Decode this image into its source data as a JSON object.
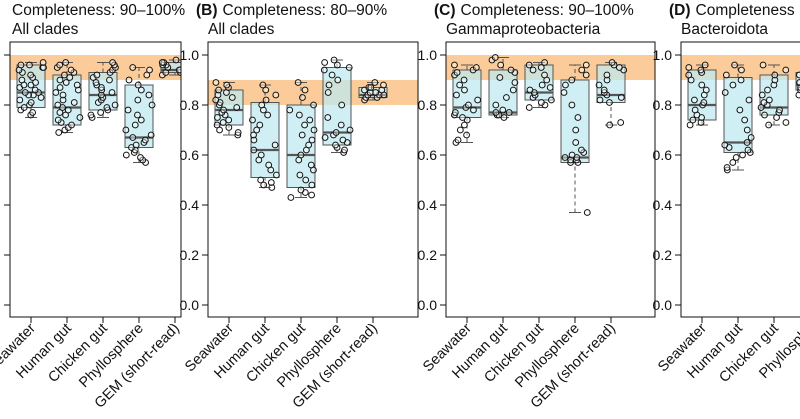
{
  "colors": {
    "box_fill": "#bfeaf0",
    "band": "#f9b977",
    "box_edge": "#555555",
    "median": "#555555",
    "point_edge": "#111111",
    "frame": "#111111"
  },
  "shared": {
    "y_ticks": [
      "0.0",
      "0.2",
      "0.4",
      "0.6",
      "0.8",
      "1.0"
    ],
    "band_range": [
      0.9,
      1.0
    ],
    "yscale": [
      0,
      1
    ]
  },
  "chart_data": [
    {
      "type": "box",
      "tag": "",
      "title": "Completeness: 90–100%",
      "subtitle": "All clades",
      "categories": [
        "Seawater",
        "Human gut",
        "Chicken gut",
        "Phyllosphere",
        "GEM (short-read)"
      ],
      "band": [
        0.9,
        1.0
      ],
      "boxes": [
        {
          "q1": 0.79,
          "median": 0.85,
          "q3": 0.96,
          "whisker_low": 0.75,
          "whisker_high": 0.97,
          "points": [
            0.76,
            0.77,
            0.78,
            0.79,
            0.8,
            0.81,
            0.82,
            0.83,
            0.84,
            0.84,
            0.85,
            0.85,
            0.86,
            0.87,
            0.88,
            0.88,
            0.89,
            0.9,
            0.91,
            0.92,
            0.93,
            0.94,
            0.95,
            0.95,
            0.96,
            0.96,
            0.97
          ]
        },
        {
          "q1": 0.72,
          "median": 0.79,
          "q3": 0.92,
          "whisker_low": 0.69,
          "whisker_high": 0.97,
          "points": [
            0.69,
            0.7,
            0.71,
            0.72,
            0.73,
            0.74,
            0.75,
            0.76,
            0.77,
            0.78,
            0.79,
            0.8,
            0.81,
            0.82,
            0.84,
            0.85,
            0.86,
            0.87,
            0.88,
            0.89,
            0.9,
            0.91,
            0.92,
            0.93,
            0.94,
            0.95,
            0.96,
            0.97
          ]
        },
        {
          "q1": 0.78,
          "median": 0.84,
          "q3": 0.93,
          "whisker_low": 0.75,
          "whisker_high": 0.97,
          "points": [
            0.75,
            0.76,
            0.77,
            0.78,
            0.79,
            0.8,
            0.81,
            0.82,
            0.83,
            0.84,
            0.85,
            0.86,
            0.87,
            0.88,
            0.89,
            0.9,
            0.91,
            0.92,
            0.93,
            0.94,
            0.95,
            0.96,
            0.97
          ]
        },
        {
          "q1": 0.63,
          "median": 0.67,
          "q3": 0.88,
          "whisker_low": 0.57,
          "whisker_high": 0.95,
          "points": [
            0.57,
            0.58,
            0.59,
            0.6,
            0.61,
            0.62,
            0.63,
            0.64,
            0.65,
            0.66,
            0.67,
            0.68,
            0.7,
            0.72,
            0.74,
            0.76,
            0.78,
            0.8,
            0.82,
            0.84,
            0.86,
            0.88,
            0.9,
            0.92,
            0.94,
            0.95
          ]
        },
        {
          "q1": 0.93,
          "median": 0.94,
          "q3": 0.97,
          "whisker_low": 0.92,
          "whisker_high": 0.98,
          "points": [
            0.92,
            0.93,
            0.93,
            0.94,
            0.94,
            0.94,
            0.95,
            0.95,
            0.96,
            0.96,
            0.97,
            0.97,
            0.98
          ]
        }
      ]
    },
    {
      "type": "box",
      "tag": "(B)",
      "title": "Completeness: 80–90%",
      "subtitle": "All clades",
      "categories": [
        "Seawater",
        "Human gut",
        "Chicken gut",
        "Phyllosphere",
        "GEM (short-read)"
      ],
      "band": [
        0.8,
        0.9
      ],
      "boxes": [
        {
          "q1": 0.72,
          "median": 0.78,
          "q3": 0.86,
          "whisker_low": 0.68,
          "whisker_high": 0.89,
          "points": [
            0.68,
            0.69,
            0.7,
            0.71,
            0.72,
            0.73,
            0.74,
            0.75,
            0.76,
            0.77,
            0.78,
            0.79,
            0.8,
            0.81,
            0.82,
            0.83,
            0.84,
            0.85,
            0.86,
            0.87,
            0.88,
            0.89
          ]
        },
        {
          "q1": 0.51,
          "median": 0.62,
          "q3": 0.81,
          "whisker_low": 0.47,
          "whisker_high": 0.88,
          "points": [
            0.47,
            0.48,
            0.49,
            0.5,
            0.52,
            0.54,
            0.56,
            0.58,
            0.6,
            0.62,
            0.64,
            0.66,
            0.68,
            0.7,
            0.72,
            0.74,
            0.76,
            0.78,
            0.8,
            0.82,
            0.84,
            0.86,
            0.88
          ]
        },
        {
          "q1": 0.47,
          "median": 0.6,
          "q3": 0.8,
          "whisker_low": 0.43,
          "whisker_high": 0.89,
          "points": [
            0.43,
            0.44,
            0.45,
            0.46,
            0.48,
            0.5,
            0.52,
            0.54,
            0.56,
            0.58,
            0.6,
            0.62,
            0.64,
            0.66,
            0.68,
            0.7,
            0.72,
            0.74,
            0.76,
            0.78,
            0.8,
            0.83,
            0.86,
            0.89
          ]
        },
        {
          "q1": 0.64,
          "median": 0.69,
          "q3": 0.95,
          "whisker_low": 0.61,
          "whisker_high": 0.98,
          "points": [
            0.61,
            0.62,
            0.63,
            0.64,
            0.65,
            0.66,
            0.67,
            0.68,
            0.69,
            0.7,
            0.72,
            0.75,
            0.8,
            0.85,
            0.88,
            0.9,
            0.92,
            0.94,
            0.95,
            0.96,
            0.97,
            0.98
          ]
        },
        {
          "q1": 0.83,
          "median": 0.84,
          "q3": 0.87,
          "whisker_low": 0.82,
          "whisker_high": 0.89,
          "points": [
            0.82,
            0.83,
            0.83,
            0.84,
            0.84,
            0.84,
            0.85,
            0.85,
            0.86,
            0.86,
            0.87,
            0.87,
            0.88,
            0.89
          ]
        }
      ]
    },
    {
      "type": "box",
      "tag": "(C)",
      "title": "Completeness: 90–100%",
      "subtitle": "Gammaproteobacteria",
      "categories": [
        "Seawater",
        "Human gut",
        "Chicken gut",
        "Phyllosphere",
        "GEM (short-read)"
      ],
      "band": [
        0.9,
        1.0
      ],
      "boxes": [
        {
          "q1": 0.75,
          "median": 0.79,
          "q3": 0.94,
          "whisker_low": 0.65,
          "whisker_high": 0.96,
          "points": [
            0.65,
            0.66,
            0.68,
            0.7,
            0.72,
            0.74,
            0.75,
            0.76,
            0.77,
            0.78,
            0.79,
            0.8,
            0.82,
            0.84,
            0.86,
            0.88,
            0.9,
            0.92,
            0.93,
            0.94,
            0.95,
            0.96
          ]
        },
        {
          "q1": 0.76,
          "median": 0.77,
          "q3": 0.94,
          "whisker_low": 0.75,
          "whisker_high": 0.99,
          "points": [
            0.75,
            0.76,
            0.76,
            0.77,
            0.77,
            0.78,
            0.8,
            0.83,
            0.86,
            0.89,
            0.91,
            0.93,
            0.94,
            0.96,
            0.98,
            0.99
          ]
        },
        {
          "q1": 0.82,
          "median": 0.85,
          "q3": 0.96,
          "whisker_low": 0.79,
          "whisker_high": 0.97,
          "points": [
            0.79,
            0.8,
            0.81,
            0.82,
            0.83,
            0.84,
            0.85,
            0.86,
            0.87,
            0.88,
            0.9,
            0.92,
            0.94,
            0.95,
            0.96,
            0.97
          ]
        },
        {
          "q1": 0.57,
          "median": 0.59,
          "q3": 0.9,
          "whisker_low": 0.37,
          "whisker_high": 0.96,
          "points": [
            0.37,
            0.57,
            0.57,
            0.58,
            0.58,
            0.59,
            0.59,
            0.6,
            0.61,
            0.62,
            0.65,
            0.7,
            0.75,
            0.8,
            0.85,
            0.88,
            0.9,
            0.92,
            0.94,
            0.96
          ]
        },
        {
          "q1": 0.81,
          "median": 0.84,
          "q3": 0.96,
          "whisker_low": 0.72,
          "whisker_high": 0.97,
          "points": [
            0.72,
            0.73,
            0.81,
            0.82,
            0.83,
            0.84,
            0.85,
            0.86,
            0.88,
            0.9,
            0.92,
            0.94,
            0.95,
            0.96,
            0.97
          ]
        }
      ]
    },
    {
      "type": "box",
      "tag": "(D)",
      "title": "Completeness",
      "subtitle": "Bacteroidota",
      "categories": [
        "Seawater",
        "Human gut",
        "Chicken gut",
        "Phyllosphe"
      ],
      "band": [
        0.9,
        1.0
      ],
      "boxes": [
        {
          "q1": 0.74,
          "median": 0.8,
          "q3": 0.94,
          "whisker_low": 0.72,
          "whisker_high": 0.96,
          "points": [
            0.72,
            0.73,
            0.74,
            0.75,
            0.76,
            0.78,
            0.8,
            0.81,
            0.82,
            0.84,
            0.86,
            0.88,
            0.9,
            0.92,
            0.93,
            0.94,
            0.95,
            0.96
          ]
        },
        {
          "q1": 0.61,
          "median": 0.65,
          "q3": 0.91,
          "whisker_low": 0.54,
          "whisker_high": 0.96,
          "points": [
            0.54,
            0.55,
            0.57,
            0.59,
            0.6,
            0.61,
            0.62,
            0.63,
            0.64,
            0.65,
            0.67,
            0.7,
            0.74,
            0.78,
            0.82,
            0.85,
            0.88,
            0.9,
            0.92,
            0.94,
            0.96
          ]
        },
        {
          "q1": 0.76,
          "median": 0.79,
          "q3": 0.92,
          "whisker_low": 0.72,
          "whisker_high": 0.96,
          "points": [
            0.72,
            0.73,
            0.75,
            0.76,
            0.77,
            0.78,
            0.79,
            0.8,
            0.81,
            0.82,
            0.84,
            0.86,
            0.88,
            0.9,
            0.92,
            0.94,
            0.96
          ]
        },
        {
          "q1": 0.86,
          "median": 0.88,
          "q3": 0.93,
          "whisker_low": 0.82,
          "whisker_high": 0.95,
          "points": [
            0.82,
            0.84,
            0.86,
            0.87,
            0.88,
            0.89,
            0.9,
            0.92,
            0.93,
            0.95
          ]
        }
      ]
    }
  ]
}
